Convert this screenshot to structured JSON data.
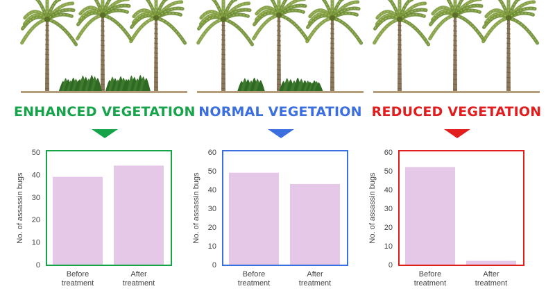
{
  "panels": [
    {
      "title": "ENHANCED VEGETATION",
      "color": "#16a34a",
      "scene": {
        "trees": 3,
        "shrubs": "dense"
      }
    },
    {
      "title": "NORMAL VEGETATION",
      "color": "#3b6fe0",
      "scene": {
        "trees": 3,
        "shrubs": "moderate"
      }
    },
    {
      "title": "REDUCED VEGETATION",
      "color": "#e11d1d",
      "scene": {
        "trees": 3,
        "shrubs": "none"
      }
    }
  ],
  "chart_data": [
    {
      "type": "bar",
      "categories": [
        [
          "Before",
          "treatment"
        ],
        [
          "After",
          "treatment"
        ]
      ],
      "values": [
        39,
        44
      ],
      "xlabel": "",
      "ylabel": "No. of assassin bugs",
      "ylim": [
        0,
        50
      ],
      "yticks": [
        0,
        10,
        20,
        30,
        40,
        50
      ],
      "bar_color": "#e5c8e8",
      "frame_color": "#16a34a",
      "grid": false
    },
    {
      "type": "bar",
      "categories": [
        [
          "Before",
          "treatment"
        ],
        [
          "After",
          "treatment"
        ]
      ],
      "values": [
        49,
        43
      ],
      "xlabel": "",
      "ylabel": "No. of assassin bugs",
      "ylim": [
        0,
        60
      ],
      "yticks": [
        0,
        10,
        20,
        30,
        40,
        50,
        60
      ],
      "bar_color": "#e5c8e8",
      "frame_color": "#3b6fe0",
      "grid": false
    },
    {
      "type": "bar",
      "categories": [
        [
          "Before",
          "treatment"
        ],
        [
          "After",
          "treatment"
        ]
      ],
      "values": [
        52,
        2
      ],
      "xlabel": "",
      "ylabel": "No. of assassin bugs",
      "ylim": [
        0,
        60
      ],
      "yticks": [
        0,
        10,
        20,
        30,
        40,
        50,
        60
      ],
      "bar_color": "#e5c8e8",
      "frame_color": "#e11d1d",
      "grid": false
    }
  ]
}
